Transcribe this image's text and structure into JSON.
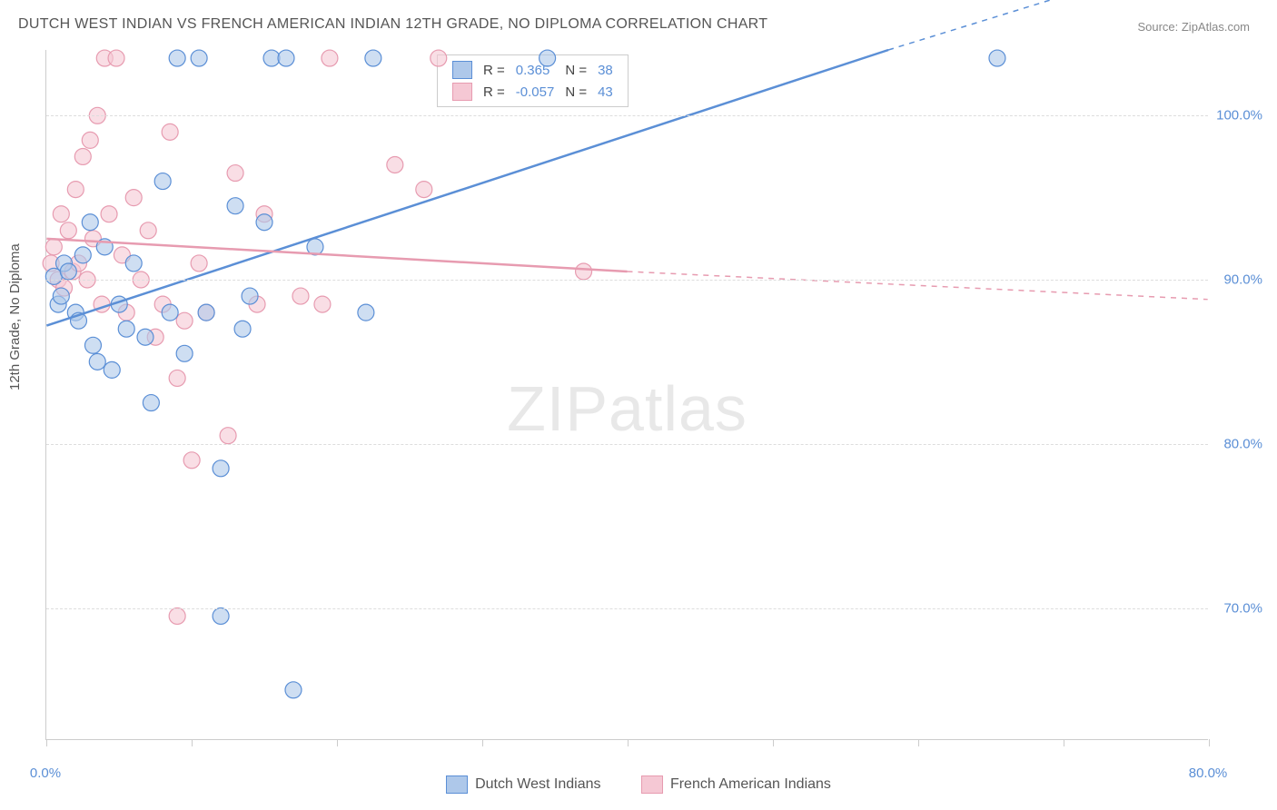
{
  "title": "DUTCH WEST INDIAN VS FRENCH AMERICAN INDIAN 12TH GRADE, NO DIPLOMA CORRELATION CHART",
  "source": "Source: ZipAtlas.com",
  "y_axis_label": "12th Grade, No Diploma",
  "watermark": {
    "part1": "ZIP",
    "part2": "atlas"
  },
  "chart": {
    "type": "scatter",
    "background_color": "#ffffff",
    "grid_color": "#dddddd",
    "axis_color": "#cccccc",
    "tick_label_color": "#5b8fd6",
    "xlim": [
      0,
      80
    ],
    "ylim": [
      62,
      104
    ],
    "y_ticks": [
      {
        "value": 70,
        "label": "70.0%"
      },
      {
        "value": 80,
        "label": "80.0%"
      },
      {
        "value": 90,
        "label": "90.0%"
      },
      {
        "value": 100,
        "label": "100.0%"
      }
    ],
    "x_tick_positions": [
      0,
      10,
      20,
      30,
      40,
      50,
      60,
      70,
      80
    ],
    "x_labels": [
      {
        "value": 0,
        "label": "0.0%"
      },
      {
        "value": 80,
        "label": "80.0%"
      }
    ],
    "marker_radius": 9,
    "marker_fill_opacity": 0.25,
    "marker_stroke_width": 1.2,
    "line_width": 2.5
  },
  "series": [
    {
      "name": "Dutch West Indians",
      "color": "#5b8fd6",
      "fill_color": "#aec8ea",
      "r_value": "0.365",
      "n_value": "38",
      "trend": {
        "x1": 0,
        "y1": 87.2,
        "x2": 58,
        "y2": 104,
        "dash_from_x": 58,
        "dash_to_x": 80,
        "y_at_end": 110
      },
      "trend_ext": {
        "x1": 58,
        "y1": 104,
        "x2": 58,
        "y2": 104
      },
      "points": [
        [
          0.5,
          90.2
        ],
        [
          0.8,
          88.5
        ],
        [
          1.0,
          89.0
        ],
        [
          1.2,
          91.0
        ],
        [
          1.5,
          90.5
        ],
        [
          2.0,
          88.0
        ],
        [
          2.2,
          87.5
        ],
        [
          2.5,
          91.5
        ],
        [
          3.0,
          93.5
        ],
        [
          3.2,
          86.0
        ],
        [
          3.5,
          85.0
        ],
        [
          4.0,
          92.0
        ],
        [
          4.5,
          84.5
        ],
        [
          5.0,
          88.5
        ],
        [
          5.5,
          87.0
        ],
        [
          6.0,
          91.0
        ],
        [
          6.8,
          86.5
        ],
        [
          7.2,
          82.5
        ],
        [
          8.0,
          96.0
        ],
        [
          8.5,
          88.0
        ],
        [
          9.0,
          103.5
        ],
        [
          9.5,
          85.5
        ],
        [
          10.5,
          103.5
        ],
        [
          11.0,
          88.0
        ],
        [
          12.0,
          78.5
        ],
        [
          12.0,
          69.5
        ],
        [
          13.0,
          94.5
        ],
        [
          13.5,
          87.0
        ],
        [
          14.0,
          89.0
        ],
        [
          15.0,
          93.5
        ],
        [
          15.5,
          103.5
        ],
        [
          16.5,
          103.5
        ],
        [
          17.0,
          65.0
        ],
        [
          18.5,
          92.0
        ],
        [
          22.0,
          88.0
        ],
        [
          22.5,
          103.5
        ],
        [
          34.5,
          103.5
        ],
        [
          65.5,
          103.5
        ]
      ]
    },
    {
      "name": "French American Indians",
      "color": "#e79bb0",
      "fill_color": "#f5c8d4",
      "r_value": "-0.057",
      "n_value": "43",
      "trend": {
        "x1": 0,
        "y1": 92.5,
        "x2": 40,
        "y2": 90.5,
        "dash_from_x": 40,
        "dash_to_x": 80,
        "y_at_end": 88.8
      },
      "points": [
        [
          0.3,
          91.0
        ],
        [
          0.5,
          92.0
        ],
        [
          0.8,
          90.0
        ],
        [
          1.0,
          94.0
        ],
        [
          1.2,
          89.5
        ],
        [
          1.5,
          93.0
        ],
        [
          1.8,
          90.5
        ],
        [
          2.0,
          95.5
        ],
        [
          2.2,
          91.0
        ],
        [
          2.5,
          97.5
        ],
        [
          2.8,
          90.0
        ],
        [
          3.0,
          98.5
        ],
        [
          3.2,
          92.5
        ],
        [
          3.5,
          100.0
        ],
        [
          3.8,
          88.5
        ],
        [
          4.0,
          103.5
        ],
        [
          4.3,
          94.0
        ],
        [
          4.8,
          103.5
        ],
        [
          5.2,
          91.5
        ],
        [
          5.5,
          88.0
        ],
        [
          6.0,
          95.0
        ],
        [
          6.5,
          90.0
        ],
        [
          7.0,
          93.0
        ],
        [
          7.5,
          86.5
        ],
        [
          8.0,
          88.5
        ],
        [
          8.5,
          99.0
        ],
        [
          9.0,
          84.0
        ],
        [
          9.0,
          69.5
        ],
        [
          9.5,
          87.5
        ],
        [
          10.0,
          79.0
        ],
        [
          10.5,
          91.0
        ],
        [
          11.0,
          88.0
        ],
        [
          12.5,
          80.5
        ],
        [
          13.0,
          96.5
        ],
        [
          14.5,
          88.5
        ],
        [
          15.0,
          94.0
        ],
        [
          17.5,
          89.0
        ],
        [
          19.0,
          88.5
        ],
        [
          19.5,
          103.5
        ],
        [
          24.0,
          97.0
        ],
        [
          26.0,
          95.5
        ],
        [
          27.0,
          103.5
        ],
        [
          37.0,
          90.5
        ]
      ]
    }
  ],
  "bottom_legend": [
    {
      "label": "Dutch West Indians",
      "fill": "#aec8ea",
      "stroke": "#5b8fd6"
    },
    {
      "label": "French American Indians",
      "fill": "#f5c8d4",
      "stroke": "#e79bb0"
    }
  ]
}
